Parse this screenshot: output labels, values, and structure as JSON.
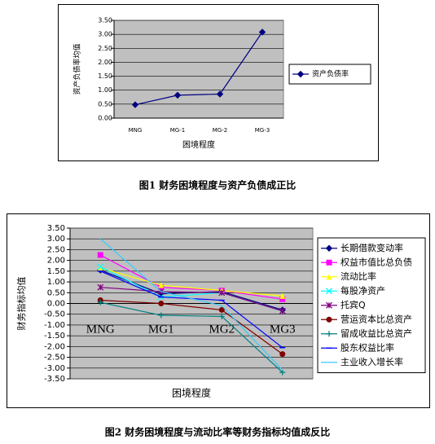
{
  "chart_data": [
    {
      "type": "line",
      "caption": "图1 财务困境程度与资产负债成正比",
      "x_label": "困境程度",
      "y_label": "资产负债率均值",
      "categories": [
        "MNG",
        "MG-1",
        "MG-2",
        "MG-3"
      ],
      "series": [
        {
          "name": "资产负债率",
          "color": "#000080",
          "marker": "diamond",
          "values": [
            0.48,
            0.82,
            0.86,
            3.08
          ]
        }
      ],
      "ylim": [
        0,
        3.5
      ],
      "yticks": [
        {
          "value": 0,
          "label": "0.00"
        },
        {
          "value": 0.5,
          "label": "0.50"
        },
        {
          "value": 1,
          "label": "1.00"
        },
        {
          "value": 1.5,
          "label": "1.50"
        },
        {
          "value": 2,
          "label": "2.00"
        },
        {
          "value": 2.5,
          "label": "2.50"
        },
        {
          "value": 3,
          "label": "3.00"
        },
        {
          "value": 3.5,
          "label": "3.50"
        }
      ],
      "legend": "right"
    },
    {
      "type": "line",
      "caption": "图2 财务困境程度与流动比率等财务指标均值成反比",
      "x_label": "困境程度",
      "y_label": "财务指标均值",
      "categories": [
        "MNG",
        "MG1",
        "MG2",
        "MG3"
      ],
      "series": [
        {
          "name": "长期借款变动率",
          "color": "#000080",
          "marker": "diamond",
          "values": [
            1.55,
            0.45,
            0.55,
            -0.3
          ]
        },
        {
          "name": "权益市值比总负债",
          "color": "#ff00ff",
          "marker": "square",
          "values": [
            2.25,
            0.75,
            0.6,
            0.2
          ]
        },
        {
          "name": "流动比率",
          "color": "#ffff00",
          "marker": "triangle",
          "values": [
            1.65,
            0.85,
            0.6,
            0.35
          ]
        },
        {
          "name": "每股净资产",
          "color": "#00ffff",
          "marker": "x",
          "values": [
            1.7,
            0.3,
            0.5,
            -0.35
          ]
        },
        {
          "name": "托宾Q",
          "color": "#800080",
          "marker": "star",
          "values": [
            0.75,
            0.55,
            0.5,
            -0.35
          ]
        },
        {
          "name": "营运资本比总资产",
          "color": "#800000",
          "marker": "circle",
          "values": [
            0.15,
            0.0,
            -0.3,
            -2.35
          ]
        },
        {
          "name": "留成收益比总资产",
          "color": "#008080",
          "marker": "plus",
          "values": [
            0.05,
            -0.55,
            -0.6,
            -3.2
          ]
        },
        {
          "name": "股东权益比率",
          "color": "#0000ff",
          "marker": "dash",
          "values": [
            1.5,
            0.3,
            0.15,
            -2.05
          ]
        },
        {
          "name": "主业收入增长率",
          "color": "#33ccff",
          "marker": "none",
          "values": [
            3.0,
            0.55,
            -0.1,
            -3.1
          ]
        }
      ],
      "ylim": [
        -3.5,
        3.5
      ],
      "yticks": [
        {
          "value": -3.5,
          "label": "-3.50"
        },
        {
          "value": -3,
          "label": "-3.00"
        },
        {
          "value": -2.5,
          "label": "-2.50"
        },
        {
          "value": -2,
          "label": "-2.00"
        },
        {
          "value": -1.5,
          "label": "-1.50"
        },
        {
          "value": -1,
          "label": "-1.00"
        },
        {
          "value": -0.5,
          "label": "-0.50"
        },
        {
          "value": 0,
          "label": "0.00"
        },
        {
          "value": 0.5,
          "label": "0.50"
        },
        {
          "value": 1,
          "label": "1.00"
        },
        {
          "value": 1.5,
          "label": "1.50"
        },
        {
          "value": 2,
          "label": "2.00"
        },
        {
          "value": 2.5,
          "label": "2.50"
        },
        {
          "value": 3,
          "label": "3.00"
        },
        {
          "value": 3.5,
          "label": "3.50"
        }
      ],
      "legend": "right"
    }
  ]
}
